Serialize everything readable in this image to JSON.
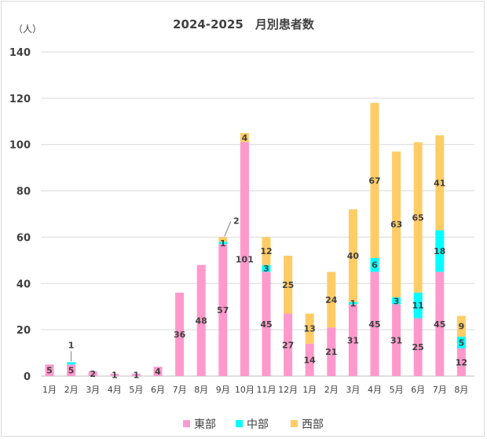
{
  "chart_data": {
    "type": "bar",
    "stacked": true,
    "title": "2024-2025　月別患者数",
    "ylabel": "（人）",
    "ylim": [
      0,
      140
    ],
    "yticks": [
      0,
      20,
      40,
      60,
      80,
      100,
      120,
      140
    ],
    "grid": true,
    "legend_position": "bottom",
    "categories": [
      "1月",
      "2月",
      "3月",
      "4月",
      "5月",
      "6月",
      "7月",
      "8月",
      "9月",
      "10月",
      "11月",
      "12月",
      "1月",
      "2月",
      "3月",
      "4月",
      "5月",
      "6月",
      "7月",
      "8月"
    ],
    "series": [
      {
        "name": "東部",
        "color": "#ff99cc",
        "values": [
          5,
          5,
          2,
          1,
          1,
          4,
          36,
          48,
          57,
          101,
          45,
          27,
          14,
          21,
          31,
          45,
          31,
          25,
          45,
          12
        ]
      },
      {
        "name": "中部",
        "color": "#00ffff",
        "values": [
          0,
          1,
          0,
          0,
          0,
          0,
          0,
          0,
          1,
          0,
          3,
          0,
          0,
          0,
          1,
          6,
          3,
          11,
          18,
          5
        ]
      },
      {
        "name": "西部",
        "color": "#ffcc66",
        "values": [
          0,
          0,
          0,
          0,
          0,
          0,
          0,
          0,
          2,
          4,
          12,
          25,
          13,
          24,
          40,
          67,
          63,
          65,
          41,
          9
        ]
      }
    ]
  }
}
